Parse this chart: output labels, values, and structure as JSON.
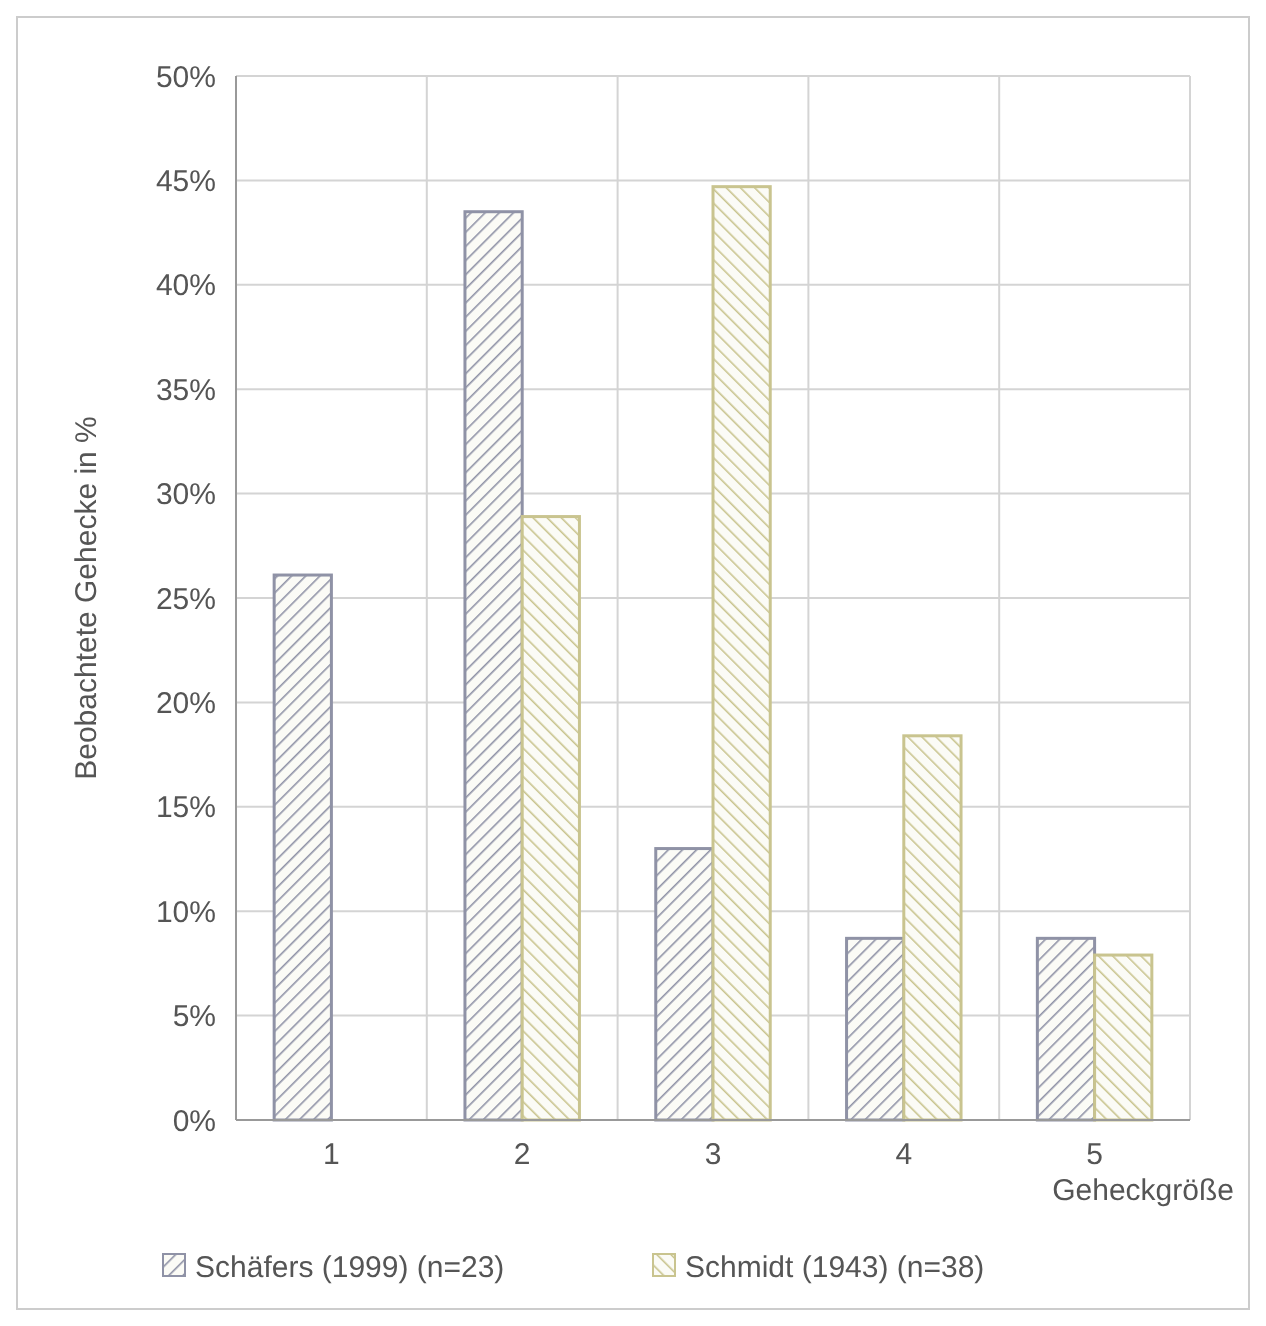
{
  "chart_data": {
    "type": "bar",
    "xlabel": "Geheckgröße",
    "ylabel": "Beobachtete Gehecke in %",
    "categories": [
      "1",
      "2",
      "3",
      "4",
      "5"
    ],
    "series": [
      {
        "name": "Schäfers (1999) (n=23)",
        "color": "#8f92a6",
        "values": [
          26.1,
          43.5,
          13.0,
          8.7,
          8.7
        ]
      },
      {
        "name": "Schmidt (1943) (n=38)",
        "color": "#c9c48f",
        "values": [
          0,
          28.9,
          44.7,
          18.4,
          7.9
        ]
      }
    ],
    "ylim": [
      0,
      50
    ],
    "yticks": [
      {
        "value": 0,
        "label": "0%"
      },
      {
        "value": 5,
        "label": "5%"
      },
      {
        "value": 10,
        "label": "10%"
      },
      {
        "value": 15,
        "label": "15%"
      },
      {
        "value": 20,
        "label": "20%"
      },
      {
        "value": 25,
        "label": "25%"
      },
      {
        "value": 30,
        "label": "30%"
      },
      {
        "value": 35,
        "label": "35%"
      },
      {
        "value": 40,
        "label": "40%"
      },
      {
        "value": 45,
        "label": "45%"
      },
      {
        "value": 50,
        "label": "50%"
      }
    ],
    "grid": true,
    "legend": "bottom"
  }
}
